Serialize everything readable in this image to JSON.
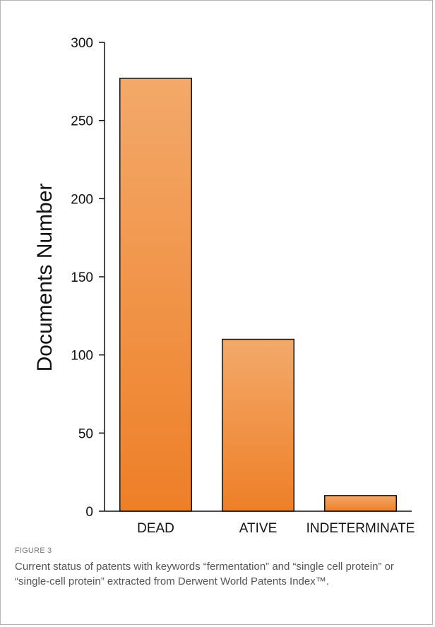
{
  "figure": {
    "label": "FIGURE 3",
    "caption": "Current status of patents with keywords “fermentation” and “single cell protein” or “single-cell protein” extracted from Derwent World Patents Index™."
  },
  "chart_data": {
    "type": "bar",
    "categories": [
      "DEAD",
      "ATIVE",
      "INDETERMINATE"
    ],
    "values": [
      277,
      110,
      10
    ],
    "title": "",
    "xlabel": "",
    "ylabel": "Documents Number",
    "ylim": [
      0,
      300
    ],
    "yticks": [
      0,
      50,
      100,
      150,
      200,
      250,
      300
    ],
    "grid": false,
    "legend": "none",
    "colors": {
      "bar_top": "#F3A96A",
      "bar_bottom": "#EE7F27",
      "bar_stroke": "#111111",
      "axis": "#111111"
    }
  }
}
